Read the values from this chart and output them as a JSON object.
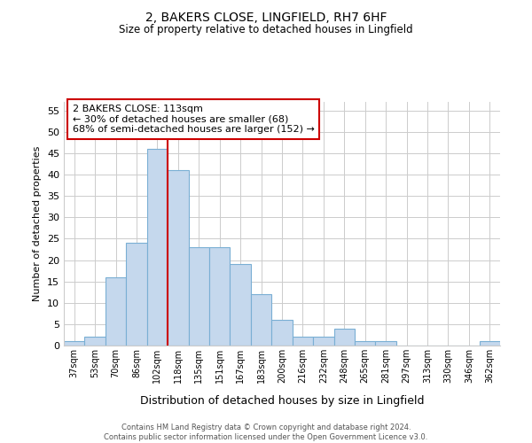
{
  "title": "2, BAKERS CLOSE, LINGFIELD, RH7 6HF",
  "subtitle": "Size of property relative to detached houses in Lingfield",
  "xlabel": "Distribution of detached houses by size in Lingfield",
  "ylabel": "Number of detached properties",
  "bin_labels": [
    "37sqm",
    "53sqm",
    "70sqm",
    "86sqm",
    "102sqm",
    "118sqm",
    "135sqm",
    "151sqm",
    "167sqm",
    "183sqm",
    "200sqm",
    "216sqm",
    "232sqm",
    "248sqm",
    "265sqm",
    "281sqm",
    "297sqm",
    "313sqm",
    "330sqm",
    "346sqm",
    "362sqm"
  ],
  "bar_heights": [
    1,
    2,
    16,
    24,
    46,
    41,
    23,
    23,
    19,
    12,
    6,
    2,
    2,
    4,
    1,
    1,
    0,
    0,
    0,
    0,
    1
  ],
  "bar_color": "#c5d8ed",
  "bar_edge_color": "#7aafd4",
  "vline_x": 4.5,
  "vline_color": "#cc0000",
  "ylim": [
    0,
    57
  ],
  "yticks": [
    0,
    5,
    10,
    15,
    20,
    25,
    30,
    35,
    40,
    45,
    50,
    55
  ],
  "annotation_title": "2 BAKERS CLOSE: 113sqm",
  "annotation_line1": "← 30% of detached houses are smaller (68)",
  "annotation_line2": "68% of semi-detached houses are larger (152) →",
  "annotation_box_color": "#ffffff",
  "annotation_box_edge": "#cc0000",
  "footer_line1": "Contains HM Land Registry data © Crown copyright and database right 2024.",
  "footer_line2": "Contains public sector information licensed under the Open Government Licence v3.0.",
  "background_color": "#ffffff",
  "grid_color": "#cccccc"
}
